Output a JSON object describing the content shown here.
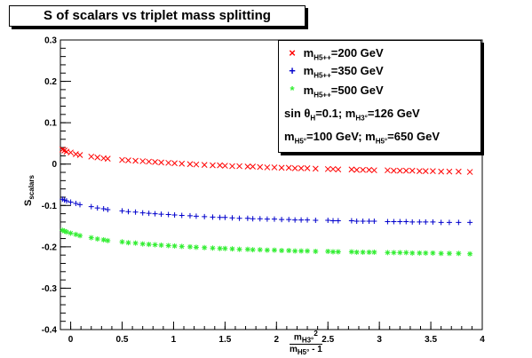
{
  "chart_data": {
    "type": "scatter",
    "title": "S of scalars vs triplet mass splitting",
    "xlabel": "m_H3^0 / m_H5^0 - 1",
    "ylabel": "S_scalars",
    "xlim": [
      -0.1,
      4.0
    ],
    "ylim": [
      -0.4,
      0.3
    ],
    "xticks": [
      "0",
      "0.5",
      "1",
      "1.5",
      "2",
      "2.5",
      "3",
      "3.5",
      "4"
    ],
    "yticks": [
      "-0.4",
      "-0.3",
      "-0.2",
      "-0.1",
      "0",
      "0.1",
      "0.2",
      "0.3"
    ],
    "grid": false,
    "legend_position": "top-right",
    "series": [
      {
        "name": "mH5++=200 GeV",
        "color": "#ff0000",
        "marker": "x",
        "x": [
          -0.08,
          -0.06,
          -0.04,
          0.0,
          0.05,
          0.09,
          0.2,
          0.26,
          0.32,
          0.36,
          0.5,
          0.56,
          0.63,
          0.7,
          0.76,
          0.82,
          0.88,
          0.95,
          1.01,
          1.08,
          1.16,
          1.22,
          1.3,
          1.38,
          1.45,
          1.5,
          1.57,
          1.64,
          1.72,
          1.77,
          1.84,
          1.91,
          1.98,
          2.05,
          2.12,
          2.18,
          2.24,
          2.3,
          2.38,
          2.5,
          2.55,
          2.6,
          2.73,
          2.78,
          2.84,
          2.9,
          2.95,
          3.08,
          3.14,
          3.2,
          3.26,
          3.32,
          3.39,
          3.45,
          3.52,
          3.6,
          3.68,
          3.77,
          3.88
        ],
        "y": [
          0.035,
          0.033,
          0.03,
          0.028,
          0.024,
          0.022,
          0.018,
          0.016,
          0.014,
          0.013,
          0.01,
          0.009,
          0.008,
          0.007,
          0.006,
          0.005,
          0.004,
          0.003,
          0.002,
          0.001,
          0.0,
          -0.001,
          -0.002,
          -0.003,
          -0.003,
          -0.004,
          -0.005,
          -0.005,
          -0.006,
          -0.006,
          -0.007,
          -0.008,
          -0.008,
          -0.009,
          -0.009,
          -0.01,
          -0.01,
          -0.01,
          -0.011,
          -0.012,
          -0.012,
          -0.013,
          -0.013,
          -0.014,
          -0.014,
          -0.014,
          -0.015,
          -0.015,
          -0.016,
          -0.016,
          -0.016,
          -0.016,
          -0.017,
          -0.017,
          -0.017,
          -0.018,
          -0.018,
          -0.018,
          -0.019
        ]
      },
      {
        "name": "mH5++=350 GeV",
        "color": "#0000cc",
        "marker": "+",
        "x": [
          -0.08,
          -0.06,
          -0.04,
          0.0,
          0.05,
          0.09,
          0.2,
          0.26,
          0.32,
          0.36,
          0.5,
          0.56,
          0.63,
          0.7,
          0.76,
          0.82,
          0.88,
          0.95,
          1.01,
          1.08,
          1.16,
          1.22,
          1.3,
          1.38,
          1.45,
          1.5,
          1.57,
          1.64,
          1.72,
          1.77,
          1.84,
          1.91,
          1.98,
          2.05,
          2.12,
          2.18,
          2.24,
          2.3,
          2.38,
          2.5,
          2.55,
          2.6,
          2.73,
          2.78,
          2.84,
          2.9,
          2.95,
          3.08,
          3.14,
          3.2,
          3.26,
          3.32,
          3.39,
          3.45,
          3.52,
          3.6,
          3.68,
          3.77,
          3.88
        ],
        "y": [
          -0.085,
          -0.087,
          -0.089,
          -0.092,
          -0.095,
          -0.098,
          -0.103,
          -0.106,
          -0.108,
          -0.11,
          -0.113,
          -0.115,
          -0.116,
          -0.118,
          -0.119,
          -0.12,
          -0.121,
          -0.122,
          -0.123,
          -0.124,
          -0.125,
          -0.126,
          -0.127,
          -0.128,
          -0.129,
          -0.129,
          -0.13,
          -0.131,
          -0.131,
          -0.132,
          -0.132,
          -0.133,
          -0.133,
          -0.134,
          -0.134,
          -0.135,
          -0.135,
          -0.135,
          -0.136,
          -0.136,
          -0.137,
          -0.137,
          -0.137,
          -0.138,
          -0.138,
          -0.138,
          -0.138,
          -0.139,
          -0.139,
          -0.139,
          -0.139,
          -0.14,
          -0.14,
          -0.14,
          -0.14,
          -0.141,
          -0.141,
          -0.141,
          -0.141
        ]
      },
      {
        "name": "mH5++=500 GeV",
        "color": "#33ee33",
        "marker": "*",
        "x": [
          -0.08,
          -0.06,
          -0.04,
          0.0,
          0.05,
          0.09,
          0.2,
          0.26,
          0.32,
          0.36,
          0.5,
          0.56,
          0.63,
          0.7,
          0.76,
          0.82,
          0.88,
          0.95,
          1.01,
          1.08,
          1.16,
          1.22,
          1.3,
          1.38,
          1.45,
          1.5,
          1.57,
          1.64,
          1.72,
          1.77,
          1.84,
          1.91,
          1.98,
          2.05,
          2.12,
          2.18,
          2.24,
          2.3,
          2.38,
          2.5,
          2.55,
          2.6,
          2.73,
          2.78,
          2.84,
          2.9,
          2.95,
          3.08,
          3.14,
          3.2,
          3.26,
          3.32,
          3.39,
          3.45,
          3.52,
          3.6,
          3.68,
          3.77,
          3.88
        ],
        "y": [
          -0.16,
          -0.162,
          -0.164,
          -0.167,
          -0.17,
          -0.173,
          -0.178,
          -0.181,
          -0.183,
          -0.185,
          -0.188,
          -0.19,
          -0.191,
          -0.193,
          -0.194,
          -0.195,
          -0.196,
          -0.197,
          -0.198,
          -0.199,
          -0.2,
          -0.201,
          -0.202,
          -0.203,
          -0.204,
          -0.204,
          -0.205,
          -0.206,
          -0.206,
          -0.207,
          -0.207,
          -0.208,
          -0.208,
          -0.209,
          -0.209,
          -0.21,
          -0.21,
          -0.21,
          -0.211,
          -0.211,
          -0.212,
          -0.212,
          -0.212,
          -0.213,
          -0.213,
          -0.213,
          -0.213,
          -0.214,
          -0.214,
          -0.214,
          -0.214,
          -0.215,
          -0.215,
          -0.215,
          -0.215,
          -0.216,
          -0.216,
          -0.216,
          -0.217
        ]
      }
    ]
  },
  "legend": {
    "s1": {
      "prefix": "m",
      "sub": "H5++",
      "value": "=200 GeV"
    },
    "s2": {
      "prefix": "m",
      "sub": "H5++",
      "value": "=350 GeV"
    },
    "s3": {
      "prefix": "m",
      "sub": "H5++",
      "value": "=500 GeV"
    },
    "line4": {
      "a": "sin θ",
      "a_sub": "H",
      "b": "=0.1; m",
      "b_sub": "H3°",
      "c": "=126 GeV"
    },
    "line5": {
      "a": "m",
      "a_sub": "H5°",
      "b": "=100 GeV; m",
      "b_sub": "H5°",
      "c": "=650 GeV"
    }
  },
  "axis": {
    "ylabel_main": "S",
    "ylabel_sub": "scalars",
    "xlabel_num_main": "m",
    "xlabel_num_sub": "H3°",
    "xlabel_num_exp": "2",
    "xlabel_den_main": "m",
    "xlabel_den_sub": "H5°",
    "xlabel_den_suffix": " - 1"
  }
}
